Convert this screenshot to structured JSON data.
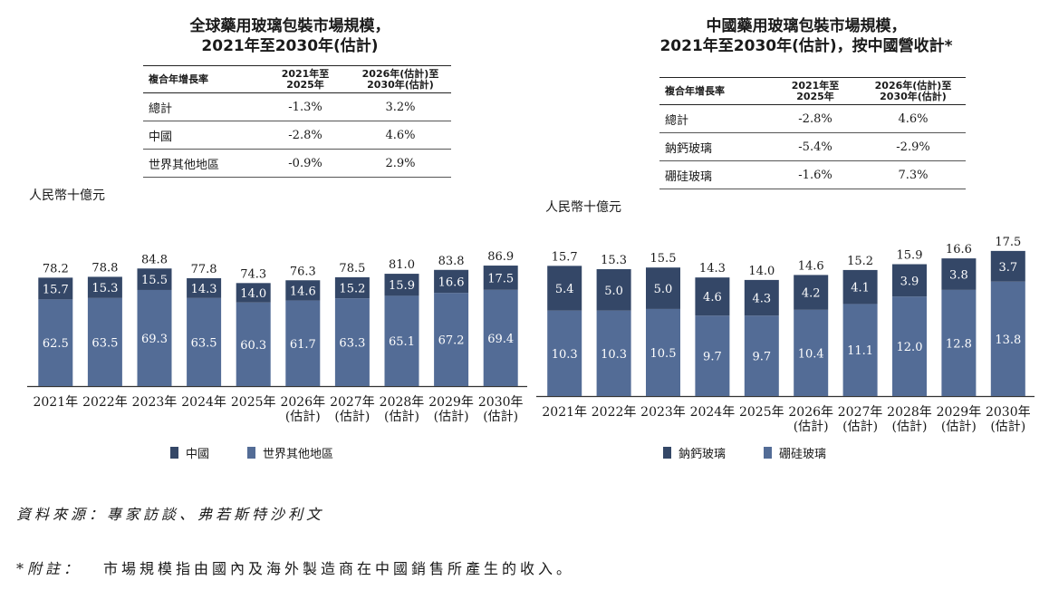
{
  "colors": {
    "china": "#344767",
    "rest": "#536c96",
    "sodium": "#344767",
    "borosilicate": "#536c96"
  },
  "left": {
    "title_line1": "全球藥用玻璃包裝市場規模，",
    "title_line2": "2021年至2030年(估計)",
    "table": {
      "headers": [
        "複合年增長率",
        "2021年至\n2025年",
        "2026年(估計)至\n2030年(估計)"
      ],
      "rows": [
        [
          "總計",
          "-1.3%",
          "3.2%"
        ],
        [
          "中國",
          "-2.8%",
          "4.6%"
        ],
        [
          "世界其他地區",
          "-0.9%",
          "2.9%"
        ]
      ]
    },
    "unit": "人民幣十億元",
    "legend": [
      "中國",
      "世界其他地區"
    ]
  },
  "right": {
    "title_line1": "中國藥用玻璃包裝市場規模，",
    "title_line2": "2021年至2030年(估計)，按中國營收計*",
    "table": {
      "headers": [
        "複合年增長率",
        "2021年至\n2025年",
        "2026年(估計)至\n2030年(估計)"
      ],
      "rows": [
        [
          "總計",
          "-2.8%",
          "4.6%"
        ],
        [
          "鈉鈣玻璃",
          "-5.4%",
          "-2.9%"
        ],
        [
          "硼硅玻璃",
          "-1.6%",
          "7.3%"
        ]
      ]
    },
    "unit": "人民幣十億元",
    "legend": [
      "鈉鈣玻璃",
      "硼硅玻璃"
    ]
  },
  "chart_data": [
    {
      "type": "bar",
      "stacked": true,
      "title": "全球藥用玻璃包裝市場規模，2021年至2030年(估計)",
      "ylabel": "人民幣十億元",
      "categories": [
        "2021年",
        "2022年",
        "2023年",
        "2024年",
        "2025年",
        "2026年\n(估計)",
        "2027年\n(估計)",
        "2028年\n(估計)",
        "2029年\n(估計)",
        "2030年\n(估計)"
      ],
      "totals": [
        78.2,
        78.8,
        84.8,
        77.8,
        74.3,
        76.3,
        78.5,
        81.0,
        83.8,
        86.9
      ],
      "series": [
        {
          "name": "世界其他地區",
          "values": [
            62.5,
            63.5,
            69.3,
            63.5,
            60.3,
            61.7,
            63.3,
            65.1,
            67.2,
            69.4
          ]
        },
        {
          "name": "中國",
          "values": [
            15.7,
            15.3,
            15.5,
            14.3,
            14.0,
            14.6,
            15.2,
            15.9,
            16.6,
            17.5
          ]
        }
      ],
      "legend_position": "bottom"
    },
    {
      "type": "bar",
      "stacked": true,
      "title": "中國藥用玻璃包裝市場規模，2021年至2030年(估計)，按中國營收計*",
      "ylabel": "人民幣十億元",
      "categories": [
        "2021年",
        "2022年",
        "2023年",
        "2024年",
        "2025年",
        "2026年\n(估計)",
        "2027年\n(估計)",
        "2028年\n(估計)",
        "2029年\n(估計)",
        "2030年\n(估計)"
      ],
      "totals": [
        15.7,
        15.3,
        15.5,
        14.3,
        14.0,
        14.6,
        15.2,
        15.9,
        16.6,
        17.5
      ],
      "series": [
        {
          "name": "硼硅玻璃",
          "values": [
            10.3,
            10.3,
            10.5,
            9.7,
            9.7,
            10.4,
            11.1,
            12.0,
            12.8,
            13.8
          ]
        },
        {
          "name": "鈉鈣玻璃",
          "values": [
            5.4,
            5.0,
            5.0,
            4.6,
            4.3,
            4.2,
            4.1,
            3.9,
            3.8,
            3.7
          ]
        }
      ],
      "legend_position": "bottom"
    }
  ],
  "footer": {
    "source": "資料來源：專家訪談、弗若斯特沙利文",
    "note_label": "*附註：",
    "note_text": "市場規模指由國內及海外製造商在中國銷售所產生的收入。"
  }
}
